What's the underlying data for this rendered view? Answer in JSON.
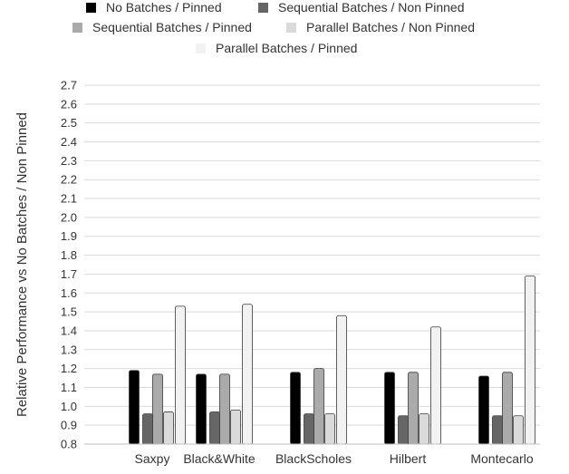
{
  "chart_data": {
    "type": "bar",
    "title": "",
    "xlabel": "",
    "ylabel": "Relative Performance vs No Batches / Non Pinned",
    "ylim": [
      0.8,
      2.7
    ],
    "yticks": [
      "0.8",
      "0.9",
      "1.0",
      "1.1",
      "1.2",
      "1.3",
      "1.4",
      "1.5",
      "1.6",
      "1.7",
      "1.8",
      "1.9",
      "2.0",
      "2.1",
      "2.2",
      "2.3",
      "2.4",
      "2.5",
      "2.6",
      "2.7"
    ],
    "grid": true,
    "legend_position": "top",
    "categories": [
      "Saxpy",
      "Black&White",
      "BlackScholes",
      "Hilbert",
      "Montecarlo"
    ],
    "series": [
      {
        "name": "No Batches / Pinned",
        "color": "#000000",
        "values": [
          1.19,
          1.17,
          1.18,
          1.18,
          1.16
        ]
      },
      {
        "name": "Sequential Batches / Non Pinned",
        "color": "#666666",
        "values": [
          0.96,
          0.97,
          0.96,
          0.95,
          0.95
        ]
      },
      {
        "name": "Sequential Batches / Pinned",
        "color": "#aaaaaa",
        "values": [
          1.17,
          1.17,
          1.2,
          1.18,
          1.18
        ]
      },
      {
        "name": "Parallel Batches / Non Pinned",
        "color": "#dadada",
        "values": [
          0.97,
          0.98,
          0.96,
          0.96,
          0.95
        ]
      },
      {
        "name": "Parallel Batches / Pinned",
        "color": "#f2f2f2",
        "values": [
          1.53,
          1.54,
          1.48,
          1.42,
          1.69
        ]
      }
    ]
  }
}
